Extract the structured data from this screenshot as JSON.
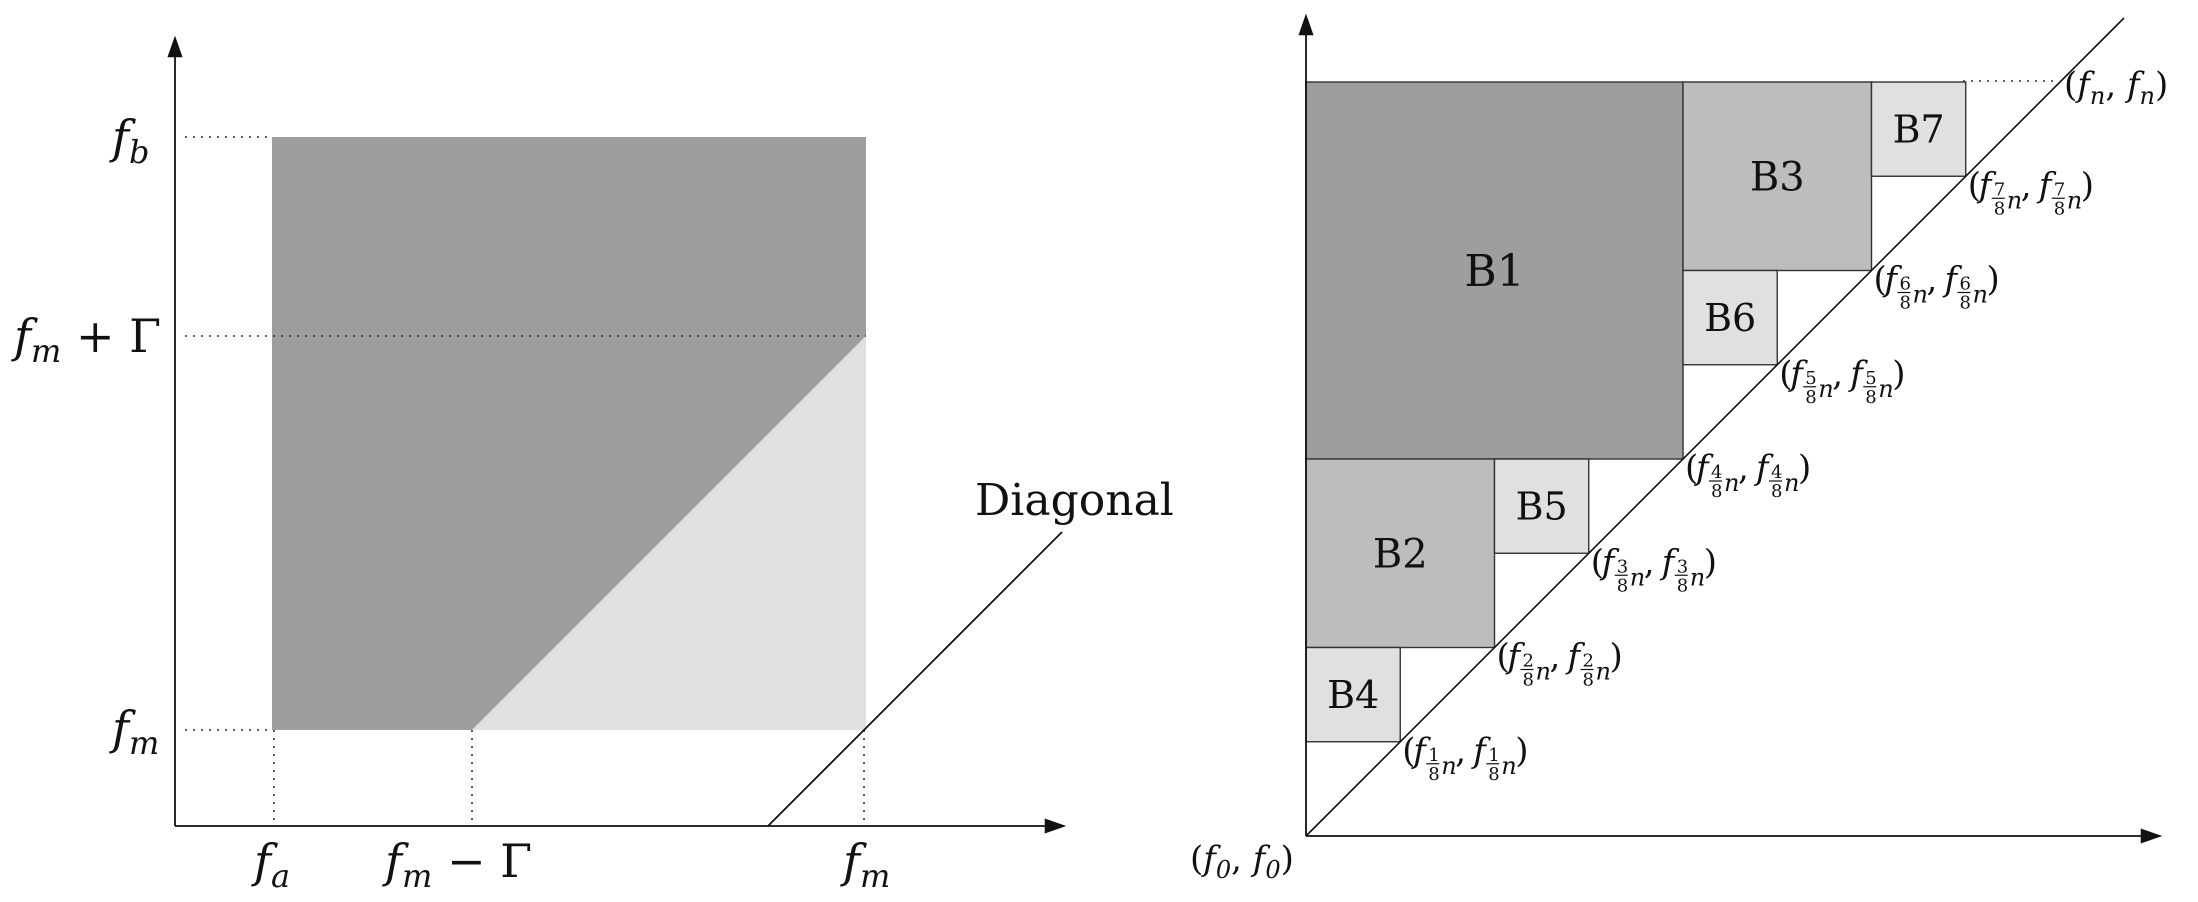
{
  "left_diagram": {
    "y_labels": {
      "fb": {
        "base": "f",
        "sub": "b",
        "suffix": ""
      },
      "fmg": {
        "base": "f",
        "sub": "m",
        "suffix": " + Γ"
      },
      "fm": {
        "base": "f",
        "sub": "m",
        "suffix": ""
      }
    },
    "x_labels": {
      "fa": {
        "base": "f",
        "sub": "a",
        "suffix": ""
      },
      "fmg": {
        "base": "f",
        "sub": "m",
        "suffix": " − Γ"
      },
      "fm": {
        "base": "f",
        "sub": "m",
        "suffix": ""
      }
    },
    "diagonal_label": "Diagonal",
    "colors": {
      "dark_region": "#9e9e9e",
      "light_region": "#e0e0e0",
      "line": "#111111"
    }
  },
  "right_diagram": {
    "blocks": [
      {
        "id": "b1",
        "label": "B1",
        "fill": "#9e9e9e"
      },
      {
        "id": "b2",
        "label": "B2",
        "fill": "#bdbdbd"
      },
      {
        "id": "b3",
        "label": "B3",
        "fill": "#bdbdbd"
      },
      {
        "id": "b4",
        "label": "B4",
        "fill": "#e0e0e0"
      },
      {
        "id": "b5",
        "label": "B5",
        "fill": "#e0e0e0"
      },
      {
        "id": "b6",
        "label": "B6",
        "fill": "#e0e0e0"
      },
      {
        "id": "b7",
        "label": "B7",
        "fill": "#e0e0e0"
      }
    ],
    "origin_label": "(f0, f0)",
    "end_label": "(fn, fn)",
    "fraction_points": [
      {
        "num": "1",
        "den": "8"
      },
      {
        "num": "2",
        "den": "8"
      },
      {
        "num": "3",
        "den": "8"
      },
      {
        "num": "4",
        "den": "8"
      },
      {
        "num": "5",
        "den": "8"
      },
      {
        "num": "6",
        "den": "8"
      },
      {
        "num": "7",
        "den": "8"
      }
    ]
  }
}
